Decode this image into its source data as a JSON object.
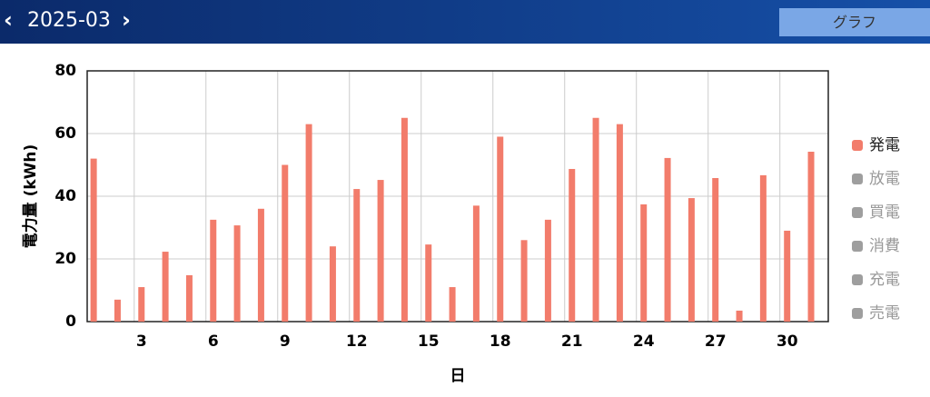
{
  "header": {
    "month": "2025-03",
    "button": "グラフ"
  },
  "chart_data": {
    "type": "bar",
    "x": [
      1,
      2,
      3,
      4,
      5,
      6,
      7,
      8,
      9,
      10,
      11,
      12,
      13,
      14,
      15,
      16,
      17,
      18,
      19,
      20,
      21,
      22,
      23,
      24,
      25,
      26,
      27,
      28,
      29,
      30,
      31
    ],
    "series": [
      {
        "name": "発電",
        "color": "#f27c6b",
        "values": [
          52,
          7,
          11,
          22.3,
          14.8,
          32.5,
          30.7,
          36,
          50,
          63,
          24,
          42.3,
          45.2,
          65,
          24.6,
          11,
          37,
          59,
          26,
          32.5,
          48.7,
          65,
          63,
          37.4,
          52.2,
          39.4,
          45.8,
          3.5,
          46.7,
          29,
          54.2
        ]
      },
      {
        "name": "放電",
        "color": "#9e9e9e",
        "hidden": true
      },
      {
        "name": "買電",
        "color": "#9e9e9e",
        "hidden": true
      },
      {
        "name": "消費",
        "color": "#9e9e9e",
        "hidden": true
      },
      {
        "name": "充電",
        "color": "#9e9e9e",
        "hidden": true
      },
      {
        "name": "売電",
        "color": "#9e9e9e",
        "hidden": true
      }
    ],
    "xlim": [
      0.73,
      31.72
    ],
    "xticks": [
      3,
      6,
      9,
      12,
      15,
      18,
      21,
      24,
      27,
      30
    ],
    "ylim": [
      0,
      80
    ],
    "yticks": [
      0,
      20,
      40,
      60,
      80
    ],
    "xlabel": "日",
    "ylabel": "電力量 (kWh)",
    "grid": true,
    "legend": "right"
  }
}
